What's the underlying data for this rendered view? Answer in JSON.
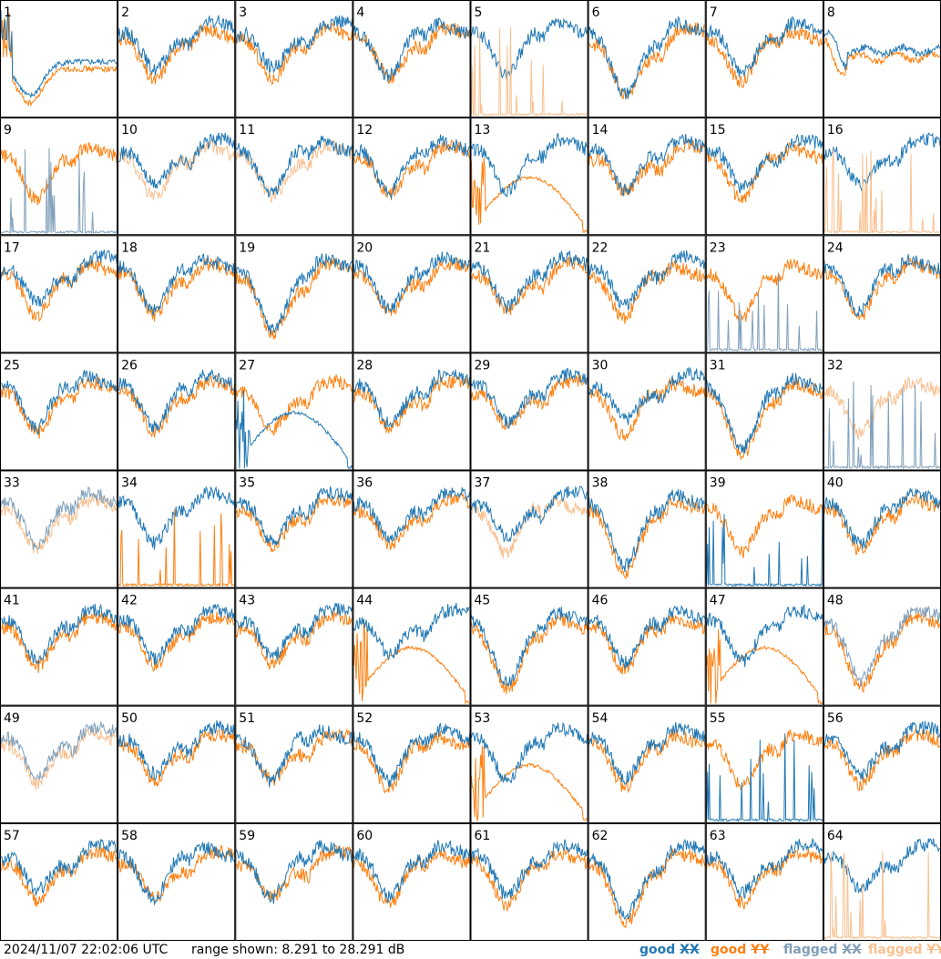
{
  "footer": {
    "timestamp": "2024/11/07 22:02:06 UTC",
    "range_text": "range shown: 8.291 to 28.291 dB"
  },
  "legend": [
    {
      "status": "good",
      "pol": "XX",
      "color": "#1f77b4"
    },
    {
      "status": "good",
      "pol": "YY",
      "color": "#ff7f0e"
    },
    {
      "status": "flagged",
      "pol": "XX",
      "color": "#7f9fba"
    },
    {
      "status": "flagged",
      "pol": "YY",
      "color": "#f9c08f"
    }
  ],
  "colors": {
    "good_xx": "#1f77b4",
    "good_yy": "#ff7f0e",
    "flagged_xx": "#7f9fba",
    "flagged_yy": "#f9c08f"
  },
  "chart_data": {
    "type": "line",
    "grid_rows": 8,
    "grid_cols": 8,
    "y_range_db": [
      8.291,
      28.291
    ],
    "panels": [
      {
        "id": "1",
        "xx": "good",
        "yy": "good",
        "pattern": "anomalous-trough"
      },
      {
        "id": "2",
        "xx": "good",
        "yy": "good",
        "pattern": "normal"
      },
      {
        "id": "3",
        "xx": "good",
        "yy": "good",
        "pattern": "normal"
      },
      {
        "id": "4",
        "xx": "good",
        "yy": "good",
        "pattern": "normal"
      },
      {
        "id": "5",
        "xx": "good",
        "yy": "flagged",
        "pattern": "yy-spiky"
      },
      {
        "id": "6",
        "xx": "good",
        "yy": "good",
        "pattern": "deep"
      },
      {
        "id": "7",
        "xx": "good",
        "yy": "good",
        "pattern": "normal"
      },
      {
        "id": "8",
        "xx": "good",
        "yy": "good",
        "pattern": "flat-mid"
      },
      {
        "id": "9",
        "xx": "flagged",
        "yy": "good",
        "pattern": "xx-spiky"
      },
      {
        "id": "10",
        "xx": "good",
        "yy": "flagged",
        "pattern": "normal"
      },
      {
        "id": "11",
        "xx": "good",
        "yy": "flagged",
        "pattern": "normal"
      },
      {
        "id": "12",
        "xx": "good",
        "yy": "good",
        "pattern": "normal"
      },
      {
        "id": "13",
        "xx": "good",
        "yy": "good",
        "pattern": "yy-dome"
      },
      {
        "id": "14",
        "xx": "good",
        "yy": "good",
        "pattern": "normal"
      },
      {
        "id": "15",
        "xx": "good",
        "yy": "good",
        "pattern": "normal"
      },
      {
        "id": "16",
        "xx": "good",
        "yy": "flagged",
        "pattern": "yy-spiky"
      },
      {
        "id": "17",
        "xx": "good",
        "yy": "good",
        "pattern": "normal"
      },
      {
        "id": "18",
        "xx": "good",
        "yy": "good",
        "pattern": "normal"
      },
      {
        "id": "19",
        "xx": "good",
        "yy": "good",
        "pattern": "deep"
      },
      {
        "id": "20",
        "xx": "good",
        "yy": "good",
        "pattern": "normal"
      },
      {
        "id": "21",
        "xx": "good",
        "yy": "good",
        "pattern": "normal"
      },
      {
        "id": "22",
        "xx": "good",
        "yy": "good",
        "pattern": "normal"
      },
      {
        "id": "23",
        "xx": "flagged",
        "yy": "good",
        "pattern": "xx-spiky"
      },
      {
        "id": "24",
        "xx": "good",
        "yy": "good",
        "pattern": "normal"
      },
      {
        "id": "25",
        "xx": "good",
        "yy": "good",
        "pattern": "normal"
      },
      {
        "id": "26",
        "xx": "good",
        "yy": "good",
        "pattern": "normal"
      },
      {
        "id": "27",
        "xx": "good",
        "yy": "good",
        "pattern": "xx-dome"
      },
      {
        "id": "28",
        "xx": "good",
        "yy": "good",
        "pattern": "normal"
      },
      {
        "id": "29",
        "xx": "good",
        "yy": "good",
        "pattern": "normal"
      },
      {
        "id": "30",
        "xx": "good",
        "yy": "good",
        "pattern": "normal"
      },
      {
        "id": "31",
        "xx": "good",
        "yy": "good",
        "pattern": "deep"
      },
      {
        "id": "32",
        "xx": "flagged",
        "yy": "flagged",
        "pattern": "xx-spiky"
      },
      {
        "id": "33",
        "xx": "flagged",
        "yy": "flagged",
        "pattern": "normal"
      },
      {
        "id": "34",
        "xx": "good",
        "yy": "good",
        "pattern": "yy-spiky"
      },
      {
        "id": "35",
        "xx": "good",
        "yy": "good",
        "pattern": "normal"
      },
      {
        "id": "36",
        "xx": "good",
        "yy": "good",
        "pattern": "normal"
      },
      {
        "id": "37",
        "xx": "good",
        "yy": "flagged",
        "pattern": "normal"
      },
      {
        "id": "38",
        "xx": "good",
        "yy": "good",
        "pattern": "deep"
      },
      {
        "id": "39",
        "xx": "good",
        "yy": "good",
        "pattern": "xx-spiky"
      },
      {
        "id": "40",
        "xx": "good",
        "yy": "good",
        "pattern": "normal"
      },
      {
        "id": "41",
        "xx": "good",
        "yy": "good",
        "pattern": "normal"
      },
      {
        "id": "42",
        "xx": "good",
        "yy": "good",
        "pattern": "normal"
      },
      {
        "id": "43",
        "xx": "good",
        "yy": "good",
        "pattern": "normal"
      },
      {
        "id": "44",
        "xx": "good",
        "yy": "good",
        "pattern": "yy-dome"
      },
      {
        "id": "45",
        "xx": "good",
        "yy": "good",
        "pattern": "deep"
      },
      {
        "id": "46",
        "xx": "good",
        "yy": "good",
        "pattern": "normal"
      },
      {
        "id": "47",
        "xx": "good",
        "yy": "good",
        "pattern": "yy-dome"
      },
      {
        "id": "48",
        "xx": "flagged",
        "yy": "good",
        "pattern": "deep"
      },
      {
        "id": "49",
        "xx": "flagged",
        "yy": "flagged",
        "pattern": "normal"
      },
      {
        "id": "50",
        "xx": "good",
        "yy": "good",
        "pattern": "normal"
      },
      {
        "id": "51",
        "xx": "good",
        "yy": "good",
        "pattern": "normal"
      },
      {
        "id": "52",
        "xx": "good",
        "yy": "good",
        "pattern": "normal"
      },
      {
        "id": "53",
        "xx": "good",
        "yy": "good",
        "pattern": "yy-dome"
      },
      {
        "id": "54",
        "xx": "good",
        "yy": "good",
        "pattern": "normal"
      },
      {
        "id": "55",
        "xx": "good",
        "yy": "good",
        "pattern": "xx-spiky"
      },
      {
        "id": "56",
        "xx": "good",
        "yy": "good",
        "pattern": "normal"
      },
      {
        "id": "57",
        "xx": "good",
        "yy": "good",
        "pattern": "normal"
      },
      {
        "id": "58",
        "xx": "good",
        "yy": "good",
        "pattern": "normal"
      },
      {
        "id": "59",
        "xx": "good",
        "yy": "good",
        "pattern": "normal"
      },
      {
        "id": "60",
        "xx": "good",
        "yy": "good",
        "pattern": "normal"
      },
      {
        "id": "61",
        "xx": "good",
        "yy": "good",
        "pattern": "normal"
      },
      {
        "id": "62",
        "xx": "good",
        "yy": "good",
        "pattern": "deep"
      },
      {
        "id": "63",
        "xx": "good",
        "yy": "good",
        "pattern": "normal"
      },
      {
        "id": "64",
        "xx": "good",
        "yy": "flagged",
        "pattern": "yy-spiky"
      }
    ]
  }
}
